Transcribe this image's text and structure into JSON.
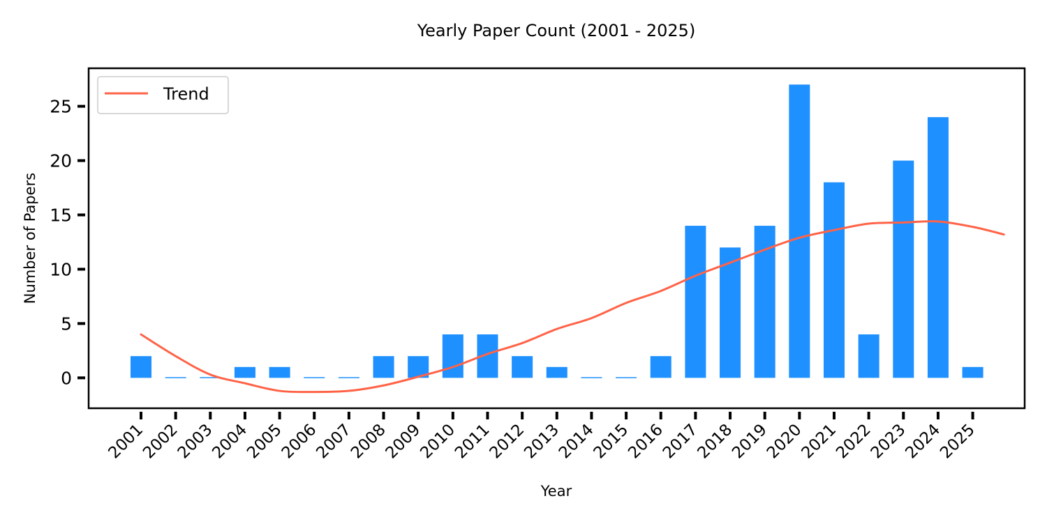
{
  "chart_data": {
    "type": "bar",
    "title": "Yearly Paper Count (2001 - 2025)",
    "xlabel": "Year",
    "ylabel": "Number of Papers",
    "categories": [
      "2001",
      "2002",
      "2003",
      "2004",
      "2005",
      "2006",
      "2007",
      "2008",
      "2009",
      "2010",
      "2011",
      "2012",
      "2013",
      "2014",
      "2015",
      "2016",
      "2017",
      "2018",
      "2019",
      "2020",
      "2021",
      "2022",
      "2023",
      "2024",
      "2025"
    ],
    "values": [
      2,
      0,
      0,
      1,
      1,
      0,
      0,
      2,
      2,
      4,
      4,
      2,
      1,
      0,
      0,
      2,
      14,
      12,
      14,
      27,
      18,
      4,
      20,
      24,
      1
    ],
    "trend": {
      "name": "Trend",
      "values": [
        4.0,
        2.0,
        0.3,
        -0.5,
        -1.2,
        -1.3,
        -1.2,
        -0.7,
        0.1,
        1.0,
        2.2,
        3.2,
        4.5,
        5.5,
        6.9,
        8.0,
        9.4,
        10.6,
        11.8,
        12.9,
        13.6,
        14.2,
        14.3,
        14.4,
        13.9,
        13.2
      ]
    },
    "trend_x": [
      0,
      1,
      2,
      3,
      4,
      5,
      6,
      7,
      8,
      9,
      10,
      11,
      12,
      13,
      14,
      15,
      16,
      17,
      18,
      19,
      20,
      21,
      22,
      23,
      24,
      24.9
    ],
    "ylim": [
      -2.8,
      28.5
    ],
    "yticks": [
      0,
      5,
      10,
      15,
      20,
      25
    ],
    "grid": false,
    "legend": "top-left",
    "colors": {
      "bar": "#1e90ff",
      "trend": "#ff6347",
      "axis": "#000000"
    }
  }
}
